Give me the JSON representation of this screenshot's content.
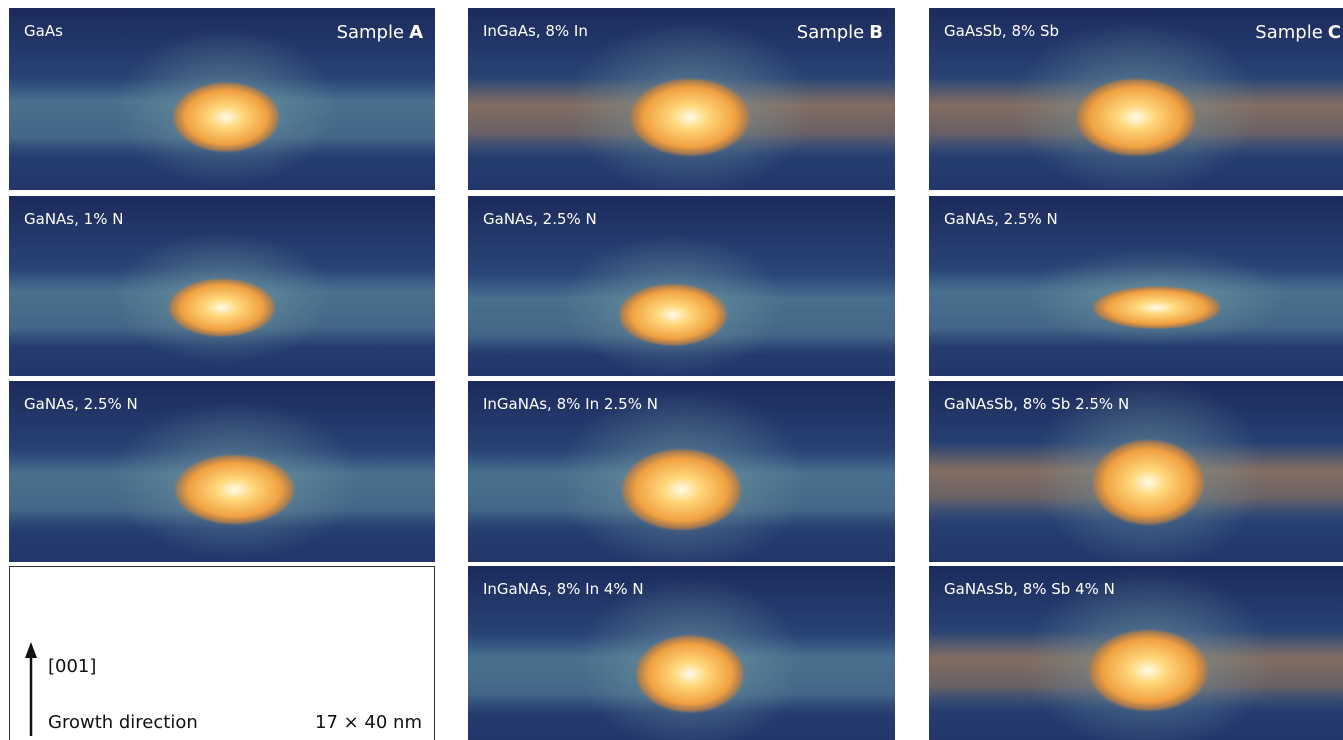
{
  "columns": [
    {
      "sample_prefix": "Sample",
      "sample_letter": "A",
      "panels": [
        "GaAs",
        "GaNAs, 1% N",
        "GaNAs, 2.5% N"
      ]
    },
    {
      "sample_prefix": "Sample",
      "sample_letter": "B",
      "panels": [
        "InGaAs, 8% In",
        "GaNAs, 2.5% N",
        "InGaNAs, 8% In 2.5% N",
        "InGaNAs, 8% In 4% N"
      ]
    },
    {
      "sample_prefix": "Sample",
      "sample_letter": "C",
      "panels": [
        "GaAsSb, 8% Sb",
        "GaNAs, 2.5% N",
        "GaNAsSb, 8% Sb 2.5% N",
        "GaNAsSb, 8% Sb 4% N"
      ]
    }
  ],
  "legend": {
    "direction": "[001]",
    "caption": "Growth direction",
    "scale": "17 × 40 nm"
  }
}
